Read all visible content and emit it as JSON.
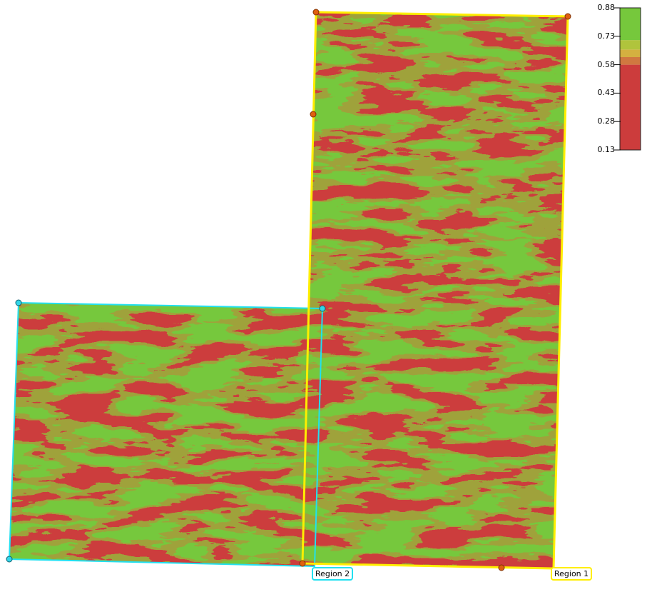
{
  "regions": [
    {
      "label": "Region 1",
      "border_color": "#ffee00",
      "vertex_color": "#e06010"
    },
    {
      "label": "Region 2",
      "border_color": "#22e0f0",
      "vertex_color": "#33d6e8"
    }
  ],
  "legend": {
    "ticks": [
      "0.88",
      "0.73",
      "0.58",
      "0.43",
      "0.28",
      "0.13"
    ],
    "range": [
      0.13,
      0.88
    ],
    "classes": [
      {
        "from": 0.13,
        "to": 0.58,
        "color": "#cc3c3c"
      },
      {
        "from": 0.58,
        "to": 0.62,
        "color": "#d07840"
      },
      {
        "from": 0.62,
        "to": 0.66,
        "color": "#d4b040"
      },
      {
        "from": 0.66,
        "to": 0.71,
        "color": "#b0c43c"
      },
      {
        "from": 0.71,
        "to": 0.88,
        "color": "#76c83c"
      }
    ]
  },
  "colors": {
    "low": "#cc3c3c",
    "high": "#76c83c"
  }
}
